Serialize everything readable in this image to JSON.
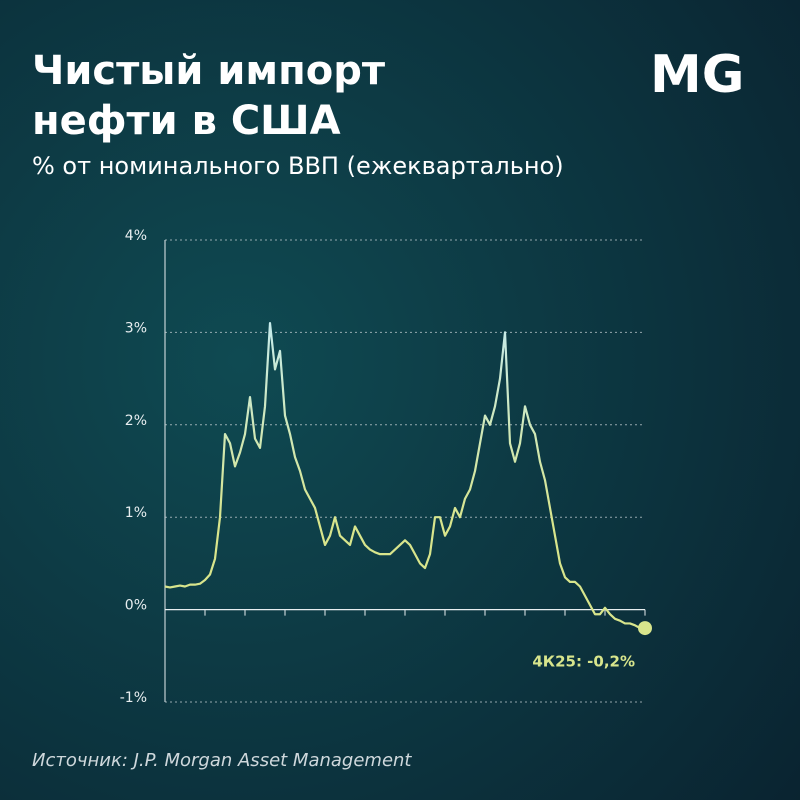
{
  "logo": "MG",
  "source": "Источник: J.P. Morgan Asset Management",
  "chart_data": {
    "type": "line",
    "title": [
      "Чистый импорт",
      "нефти в США"
    ],
    "subtitle": "% от номинального ВВП (ежеквартально)",
    "annotation": "4К25: -0,2%",
    "color": "#d8e58c",
    "values": [
      0.25,
      0.24,
      0.25,
      0.26,
      0.25,
      0.27,
      0.27,
      0.28,
      0.32,
      0.38,
      0.55,
      1.0,
      1.9,
      1.8,
      1.55,
      1.7,
      1.9,
      2.3,
      1.85,
      1.75,
      2.2,
      3.1,
      2.6,
      2.8,
      2.1,
      1.9,
      1.65,
      1.5,
      1.3,
      1.2,
      1.1,
      0.9,
      0.7,
      0.8,
      1.0,
      0.8,
      0.75,
      0.7,
      0.9,
      0.8,
      0.7,
      0.65,
      0.62,
      0.6,
      0.6,
      0.6,
      0.65,
      0.7,
      0.75,
      0.7,
      0.6,
      0.5,
      0.45,
      0.6,
      1.0,
      1.0,
      0.8,
      0.9,
      1.1,
      1.0,
      1.2,
      1.3,
      1.5,
      1.8,
      2.1,
      2.0,
      2.2,
      2.5,
      3.0,
      1.8,
      1.6,
      1.8,
      2.2,
      2.0,
      1.9,
      1.6,
      1.4,
      1.1,
      0.8,
      0.5,
      0.35,
      0.3,
      0.3,
      0.25,
      0.15,
      0.05,
      -0.05,
      -0.05,
      0.02,
      -0.05,
      -0.1,
      -0.12,
      -0.15,
      -0.15,
      -0.17,
      -0.2,
      -0.2
    ],
    "ylim": [
      -1,
      4
    ],
    "yticks": [
      {
        "value": -1,
        "label": "-1%"
      },
      {
        "value": 0,
        "label": "0%"
      },
      {
        "value": 1,
        "label": "1%"
      },
      {
        "value": 2,
        "label": "2%"
      },
      {
        "value": 3,
        "label": "3%"
      },
      {
        "value": 4,
        "label": "4%"
      }
    ],
    "grid": true
  }
}
